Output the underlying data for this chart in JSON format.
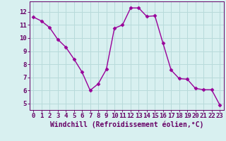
{
  "x": [
    0,
    1,
    2,
    3,
    4,
    5,
    6,
    7,
    8,
    9,
    10,
    11,
    12,
    13,
    14,
    15,
    16,
    17,
    18,
    19,
    20,
    21,
    22,
    23
  ],
  "y": [
    11.6,
    11.3,
    10.8,
    9.9,
    9.3,
    8.4,
    7.4,
    6.0,
    6.5,
    7.6,
    10.75,
    11.0,
    12.3,
    12.3,
    11.65,
    11.7,
    9.6,
    7.55,
    6.9,
    6.85,
    6.15,
    6.05,
    6.05,
    4.9
  ],
  "line_color": "#990099",
  "marker": "D",
  "markersize": 2.5,
  "linewidth": 1.0,
  "background_color": "#d8f0f0",
  "grid_color": "#b8dada",
  "xlabel": "Windchill (Refroidissement éolien,°C)",
  "xlabel_fontsize": 7,
  "tick_label_color": "#660066",
  "tick_fontsize": 6.5,
  "ylim": [
    4.5,
    12.8
  ],
  "xlim": [
    -0.5,
    23.5
  ],
  "yticks": [
    5,
    6,
    7,
    8,
    9,
    10,
    11,
    12
  ],
  "xticks": [
    0,
    1,
    2,
    3,
    4,
    5,
    6,
    7,
    8,
    9,
    10,
    11,
    12,
    13,
    14,
    15,
    16,
    17,
    18,
    19,
    20,
    21,
    22,
    23
  ]
}
